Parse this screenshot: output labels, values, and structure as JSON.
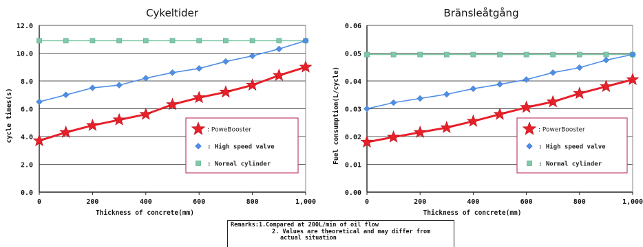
{
  "chart_data": [
    {
      "type": "line",
      "title": "Cykeltider",
      "xlabel": "Thickness of concrete(mm)",
      "ylabel": "cycle times(s)",
      "xlim": [
        0,
        1000
      ],
      "ylim": [
        0,
        12
      ],
      "x_ticks": [
        0,
        200,
        400,
        600,
        800,
        1000
      ],
      "x_tick_labels": [
        "0",
        "200",
        "400",
        "600",
        "800",
        "1,000"
      ],
      "y_ticks": [
        0,
        2,
        4,
        6,
        8,
        10,
        12
      ],
      "y_tick_labels": [
        "0.0",
        "2.0",
        "4.0",
        "6.0",
        "8.0",
        "10.0",
        "12.0"
      ],
      "grid": "horizontal",
      "legend_position": "bottom-right",
      "x": [
        0,
        100,
        200,
        300,
        400,
        500,
        600,
        700,
        800,
        900,
        1000
      ],
      "series": [
        {
          "name": ": PoweBooster",
          "marker": "star",
          "color": "#e8202a",
          "values": [
            3.7,
            4.3,
            4.8,
            5.2,
            5.6,
            6.3,
            6.8,
            7.2,
            7.7,
            8.4,
            9.0
          ]
        },
        {
          "name": ": High speed valve",
          "marker": "diamond",
          "color": "#4f8ee6",
          "values": [
            6.5,
            7.0,
            7.5,
            7.7,
            8.2,
            8.6,
            8.9,
            9.4,
            9.8,
            10.3,
            10.9
          ]
        },
        {
          "name": ": Normal cylinder",
          "marker": "square",
          "color": "#7fc8a8",
          "values": [
            10.9,
            10.9,
            10.9,
            10.9,
            10.9,
            10.9,
            10.9,
            10.9,
            10.9,
            10.9,
            10.9
          ]
        }
      ]
    },
    {
      "type": "line",
      "title": "Bränsleåtgång",
      "xlabel": "Thickness of concrete(mm)",
      "ylabel": "Fuel consumption(L/cycle)",
      "xlim": [
        0,
        1000
      ],
      "ylim": [
        0,
        0.06
      ],
      "x_ticks": [
        0,
        200,
        400,
        600,
        800,
        1000
      ],
      "x_tick_labels": [
        "0",
        "200",
        "400",
        "600",
        "800",
        "1,000"
      ],
      "y_ticks": [
        0,
        0.01,
        0.02,
        0.03,
        0.04,
        0.05,
        0.06
      ],
      "y_tick_labels": [
        "0.00",
        "0.01",
        "0.02",
        "0.03",
        "0.04",
        "0.05",
        "0.06"
      ],
      "grid": "horizontal",
      "legend_position": "bottom-right",
      "x": [
        0,
        100,
        200,
        300,
        400,
        500,
        600,
        700,
        800,
        900,
        1000
      ],
      "series": [
        {
          "name": ": PowerBooster",
          "marker": "star",
          "color": "#e8202a",
          "values": [
            0.018,
            0.0198,
            0.0215,
            0.0232,
            0.0255,
            0.028,
            0.0305,
            0.0325,
            0.0355,
            0.038,
            0.0405
          ]
        },
        {
          "name": ": High speed valve",
          "marker": "diamond",
          "color": "#4f8ee6",
          "values": [
            0.03,
            0.0322,
            0.0337,
            0.0352,
            0.0372,
            0.0388,
            0.0405,
            0.043,
            0.0448,
            0.0475,
            0.0495
          ]
        },
        {
          "name": ": Normal cylinder",
          "marker": "square",
          "color": "#7fc8a8",
          "values": [
            0.0495,
            0.0495,
            0.0495,
            0.0495,
            0.0495,
            0.0495,
            0.0495,
            0.0495,
            0.0495,
            0.0495,
            0.0495
          ]
        }
      ]
    }
  ],
  "remarks": {
    "line1": "Remarks:1.Compared at 200L/min of oil flow",
    "line2": "2. Values are theoretical and may differ from",
    "line3": "actual situation"
  }
}
